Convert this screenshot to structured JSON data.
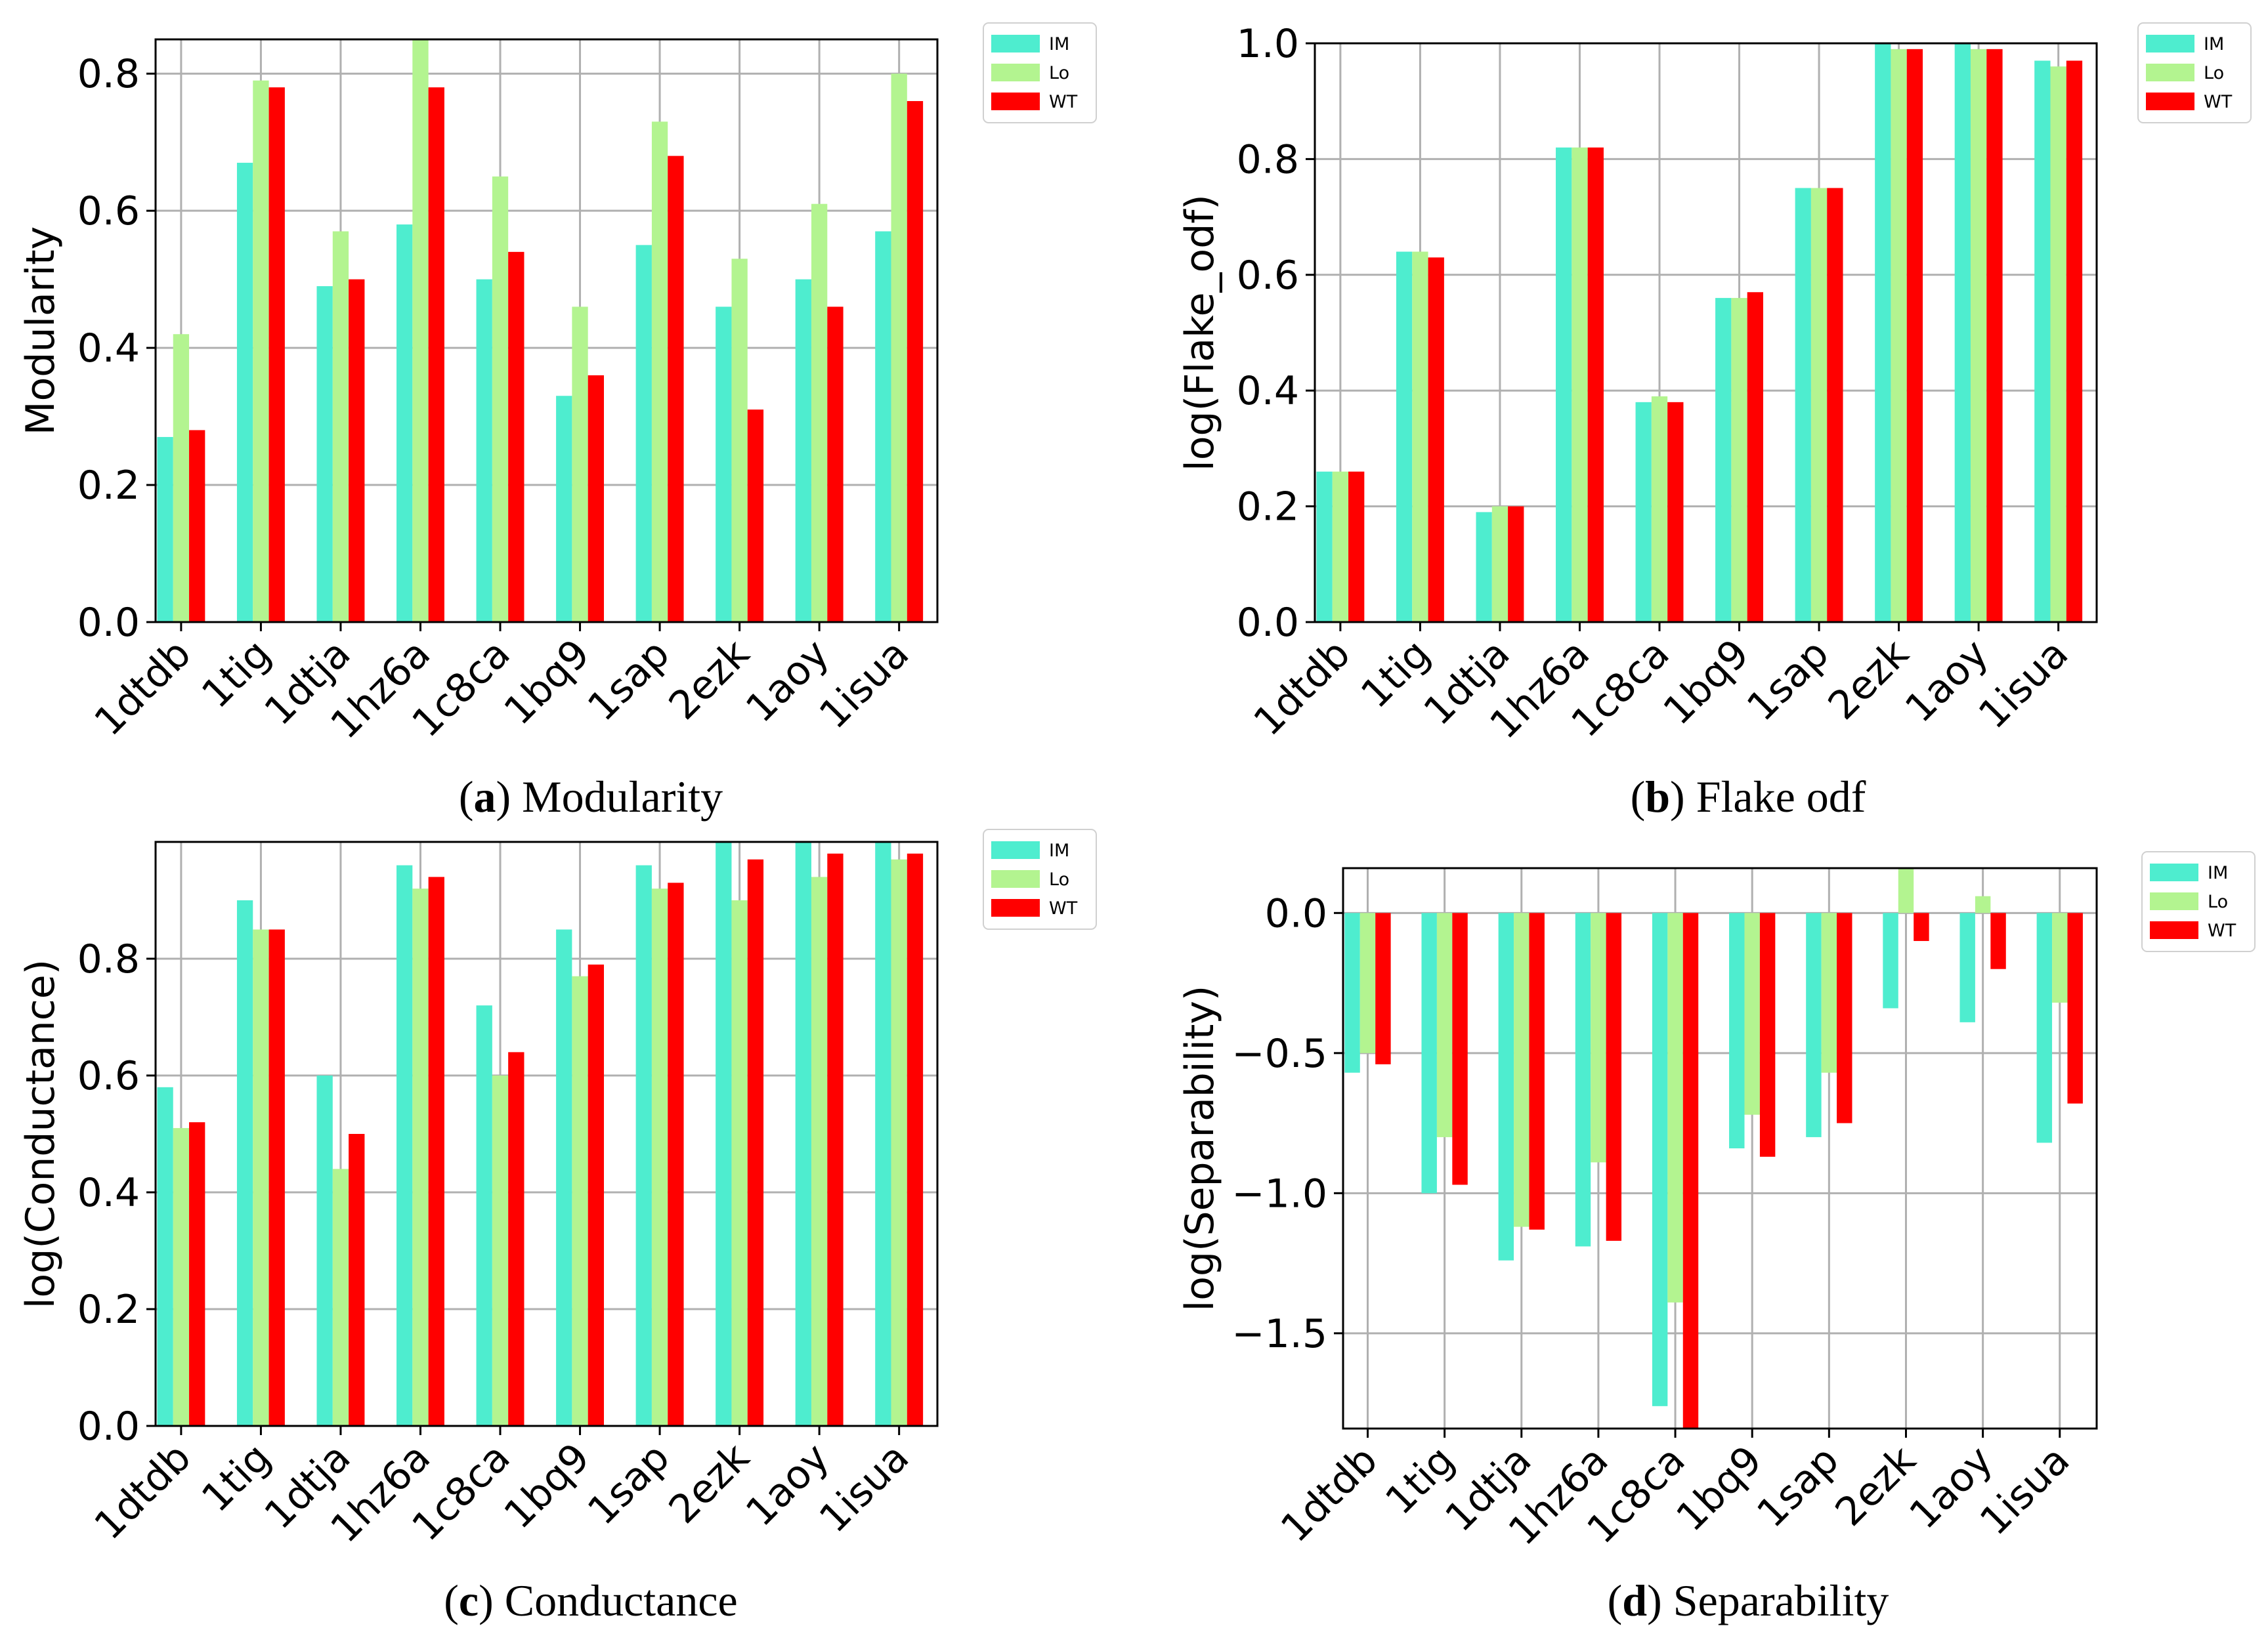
{
  "colors": {
    "IM": "#4EEDCF",
    "Lo": "#B3F490",
    "WT": "#FF0000",
    "grid": "#B0B0B0",
    "axis": "#000000"
  },
  "chart_data": [
    {
      "id": "a",
      "type": "bar",
      "title": "",
      "caption_letter": "a",
      "caption_text": "Modularity",
      "xlabel": "",
      "ylabel": "Modularity",
      "categories": [
        "1dtdb",
        "1tig",
        "1dtja",
        "1hz6a",
        "1c8ca",
        "1bq9",
        "1sap",
        "2ezk",
        "1aoy",
        "1isua"
      ],
      "ylim": [
        0,
        0.85
      ],
      "yticks": [
        0.0,
        0.2,
        0.4,
        0.6,
        0.8
      ],
      "ytick_labels": [
        "0.0",
        "0.2",
        "0.4",
        "0.6",
        "0.8"
      ],
      "legend_position": "outside-top-right",
      "series": [
        {
          "name": "IM",
          "values": [
            0.27,
            0.67,
            0.49,
            0.58,
            0.5,
            0.33,
            0.55,
            0.46,
            0.5,
            0.57
          ]
        },
        {
          "name": "Lo",
          "values": [
            0.42,
            0.79,
            0.57,
            0.85,
            0.65,
            0.46,
            0.73,
            0.53,
            0.61,
            0.8
          ]
        },
        {
          "name": "WT",
          "values": [
            0.28,
            0.78,
            0.5,
            0.78,
            0.54,
            0.36,
            0.68,
            0.31,
            0.46,
            0.76
          ]
        }
      ]
    },
    {
      "id": "b",
      "type": "bar",
      "title": "",
      "caption_letter": "b",
      "caption_text": "Flake odf",
      "xlabel": "",
      "ylabel": "log(Flake_odf)",
      "categories": [
        "1dtdb",
        "1tig",
        "1dtja",
        "1hz6a",
        "1c8ca",
        "1bq9",
        "1sap",
        "2ezk",
        "1aoy",
        "1isua"
      ],
      "ylim": [
        0,
        1.0
      ],
      "yticks": [
        0.0,
        0.2,
        0.4,
        0.6,
        0.8,
        1.0
      ],
      "ytick_labels": [
        "0.0",
        "0.2",
        "0.4",
        "0.6",
        "0.8",
        "1.0"
      ],
      "legend_position": "outside-top-right",
      "series": [
        {
          "name": "IM",
          "values": [
            0.26,
            0.64,
            0.19,
            0.82,
            0.38,
            0.56,
            0.75,
            1.0,
            1.0,
            0.97
          ]
        },
        {
          "name": "Lo",
          "values": [
            0.26,
            0.64,
            0.2,
            0.82,
            0.39,
            0.56,
            0.75,
            0.99,
            0.99,
            0.96
          ]
        },
        {
          "name": "WT",
          "values": [
            0.26,
            0.63,
            0.2,
            0.82,
            0.38,
            0.57,
            0.75,
            0.99,
            0.99,
            0.97
          ]
        }
      ]
    },
    {
      "id": "c",
      "type": "bar",
      "title": "",
      "caption_letter": "c",
      "caption_text": "Conductance",
      "xlabel": "",
      "ylabel": "log(Conductance)",
      "categories": [
        "1dtdb",
        "1tig",
        "1dtja",
        "1hz6a",
        "1c8ca",
        "1bq9",
        "1sap",
        "2ezk",
        "1aoy",
        "1isua"
      ],
      "ylim": [
        0,
        1.0
      ],
      "yticks": [
        0.0,
        0.2,
        0.4,
        0.6,
        0.8
      ],
      "ytick_labels": [
        "0.0",
        "0.2",
        "0.4",
        "0.6",
        "0.8"
      ],
      "legend_position": "outside-top-right",
      "series": [
        {
          "name": "IM",
          "values": [
            0.58,
            0.9,
            0.6,
            0.96,
            0.72,
            0.85,
            0.96,
            1.0,
            1.0,
            1.0
          ]
        },
        {
          "name": "Lo",
          "values": [
            0.51,
            0.85,
            0.44,
            0.92,
            0.6,
            0.77,
            0.92,
            0.9,
            0.94,
            0.97
          ]
        },
        {
          "name": "WT",
          "values": [
            0.52,
            0.85,
            0.5,
            0.94,
            0.64,
            0.79,
            0.93,
            0.97,
            0.98,
            0.98
          ]
        }
      ]
    },
    {
      "id": "d",
      "type": "bar",
      "title": "",
      "caption_letter": "d",
      "caption_text": "Separability",
      "xlabel": "",
      "ylabel": "log(Separability)",
      "categories": [
        "1dtdb",
        "1tig",
        "1dtja",
        "1hz6a",
        "1c8ca",
        "1bq9",
        "1sap",
        "2ezk",
        "1aoy",
        "1isua"
      ],
      "ylim": [
        -1.84,
        0.16
      ],
      "yticks": [
        -1.5,
        -1.0,
        -0.5,
        0.0
      ],
      "ytick_labels": [
        "−1.5",
        "−1.0",
        "−0.5",
        "0.0"
      ],
      "legend_position": "outside-top-right",
      "series": [
        {
          "name": "IM",
          "values": [
            -0.57,
            -1.0,
            -1.24,
            -1.19,
            -1.76,
            -0.84,
            -0.8,
            -0.34,
            -0.39,
            -0.82
          ]
        },
        {
          "name": "Lo",
          "values": [
            -0.5,
            -0.8,
            -1.12,
            -0.89,
            -1.39,
            -0.72,
            -0.57,
            0.16,
            0.06,
            -0.32
          ]
        },
        {
          "name": "WT",
          "values": [
            -0.54,
            -0.97,
            -1.13,
            -1.17,
            -1.84,
            -0.87,
            -0.75,
            -0.1,
            -0.2,
            -0.68
          ]
        }
      ]
    }
  ]
}
